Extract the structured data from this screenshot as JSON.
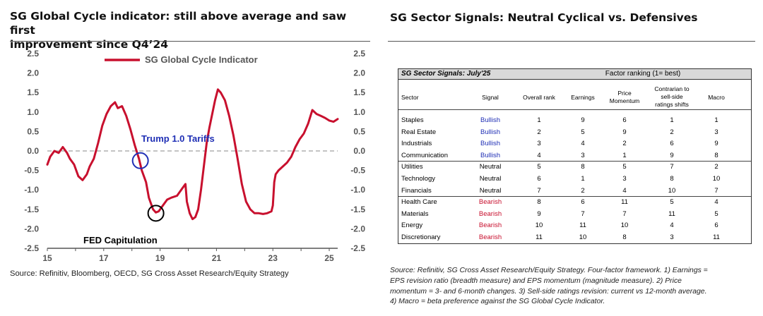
{
  "left_panel": {
    "title_line1": "SG Global Cycle indicator: still above average and saw first",
    "title_line2": "improvement since Q4’24",
    "source": "Source: Refinitiv, Bloomberg, OECD, SG Cross Asset Research/Equity Strategy"
  },
  "right_panel": {
    "title": "SG Sector Signals: Neutral Cyclical vs. Defensives",
    "source_lines": [
      "Source: Refinitiv, SG Cross Asset Research/Equity Strategy. Four-factor framework. 1) Earnings =",
      "EPS revision ratio (breadth measure) and EPS momentum (magnitude measure). 2) Price",
      "momentum = 3- and 6-month changes. 3) Sell-side ratings revision: current vs 12-month average.",
      "4) Macro = beta preference against the SG Global Cycle Indicator."
    ]
  },
  "chart_data": {
    "type": "line",
    "legend_label": "SG Global Cycle Indicator",
    "legend_position": "top-center",
    "ylim": [
      -2.5,
      2.5
    ],
    "yticks": [
      "2.5",
      "2.0",
      "1.5",
      "1.0",
      "0.5",
      "0.0",
      "-0.5",
      "-1.0",
      "-1.5",
      "-2.0",
      "-2.5"
    ],
    "xlim": [
      15,
      25.3
    ],
    "xticks": [
      "15",
      "17",
      "19",
      "21",
      "23",
      "25"
    ],
    "zero_line": "dashed",
    "colors": {
      "line": "#c8102e",
      "zero": "#b0b0b0",
      "blue_marker": "#1f2fb5",
      "black_marker": "#000000"
    },
    "annotations": [
      {
        "text": "Trump 1.0 Tariffs",
        "color": "#1f2fb5"
      },
      {
        "text": "FED Capitulation",
        "color": "#000000"
      }
    ],
    "markers": [
      {
        "x": 18.3,
        "y": -0.25,
        "color": "blue"
      },
      {
        "x": 18.85,
        "y": -1.6,
        "color": "black"
      }
    ],
    "series": [
      {
        "x": [
          15.0,
          15.1,
          15.25,
          15.4,
          15.55,
          15.7,
          15.8,
          15.95,
          16.1,
          16.25,
          16.4,
          16.5,
          16.65,
          16.8,
          16.95,
          17.1,
          17.25,
          17.4,
          17.5,
          17.65,
          17.8,
          17.95,
          18.1,
          18.25,
          18.35,
          18.5,
          18.6,
          18.75,
          18.85,
          18.95,
          19.1,
          19.25,
          19.4,
          19.6,
          19.8,
          19.9,
          19.95,
          20.05,
          20.15,
          20.25,
          20.35,
          20.45,
          20.55,
          20.65,
          20.75,
          20.85,
          20.95,
          21.05,
          21.15,
          21.3,
          21.45,
          21.6,
          21.75,
          21.9,
          22.05,
          22.2,
          22.35,
          22.5,
          22.65,
          22.8,
          22.95,
          23.0,
          23.05,
          23.1,
          23.2,
          23.35,
          23.5,
          23.65,
          23.8,
          23.95,
          24.1,
          24.25,
          24.4,
          24.55,
          24.7,
          24.85,
          25.0,
          25.15,
          25.3
        ],
        "y": [
          -0.35,
          -0.15,
          0.0,
          -0.05,
          0.1,
          -0.05,
          -0.2,
          -0.35,
          -0.65,
          -0.75,
          -0.6,
          -0.4,
          -0.2,
          0.2,
          0.65,
          0.95,
          1.15,
          1.25,
          1.1,
          1.15,
          0.9,
          0.55,
          0.15,
          -0.2,
          -0.5,
          -0.8,
          -1.2,
          -1.5,
          -1.58,
          -1.55,
          -1.4,
          -1.25,
          -1.2,
          -1.15,
          -0.95,
          -0.85,
          -1.3,
          -1.6,
          -1.75,
          -1.7,
          -1.5,
          -1.0,
          -0.4,
          0.2,
          0.6,
          0.95,
          1.3,
          1.58,
          1.5,
          1.3,
          0.9,
          0.4,
          -0.2,
          -0.85,
          -1.3,
          -1.5,
          -1.6,
          -1.6,
          -1.62,
          -1.6,
          -1.55,
          -1.4,
          -0.8,
          -0.6,
          -0.5,
          -0.4,
          -0.3,
          -0.15,
          0.1,
          0.3,
          0.45,
          0.7,
          1.05,
          0.95,
          0.9,
          0.85,
          0.78,
          0.75,
          0.82
        ]
      }
    ]
  },
  "table": {
    "header_left": "SG Sector Signals: July'25",
    "header_right": "Factor ranking (1= best)",
    "columns": [
      "Sector",
      "Signal",
      "Overall rank",
      "Earnings",
      "Price Momentum",
      "Contrarian to sell-side ratings shifts",
      "Macro"
    ],
    "col_head_lines": {
      "price": [
        "Price",
        "Momentum"
      ],
      "contrarian": [
        "Contrarian to",
        "sell-side",
        "ratings shifts"
      ]
    },
    "rows": [
      [
        "Staples",
        "Bullish",
        "1",
        "9",
        "6",
        "1",
        "1"
      ],
      [
        "Real Estate",
        "Bullish",
        "2",
        "5",
        "9",
        "2",
        "3"
      ],
      [
        "Industrials",
        "Bullish",
        "3",
        "4",
        "2",
        "6",
        "9"
      ],
      [
        "Communication",
        "Bullish",
        "4",
        "3",
        "1",
        "9",
        "8"
      ],
      [
        "Utilities",
        "Neutral",
        "5",
        "8",
        "5",
        "7",
        "2"
      ],
      [
        "Technology",
        "Neutral",
        "6",
        "1",
        "3",
        "8",
        "10"
      ],
      [
        "Financials",
        "Neutral",
        "7",
        "2",
        "4",
        "10",
        "7"
      ],
      [
        "Health Care",
        "Bearish",
        "8",
        "6",
        "11",
        "5",
        "4"
      ],
      [
        "Materials",
        "Bearish",
        "9",
        "7",
        "7",
        "11",
        "5"
      ],
      [
        "Energy",
        "Bearish",
        "10",
        "11",
        "10",
        "4",
        "6"
      ],
      [
        "Discretionary",
        "Bearish",
        "11",
        "10",
        "8",
        "3",
        "11"
      ]
    ]
  }
}
